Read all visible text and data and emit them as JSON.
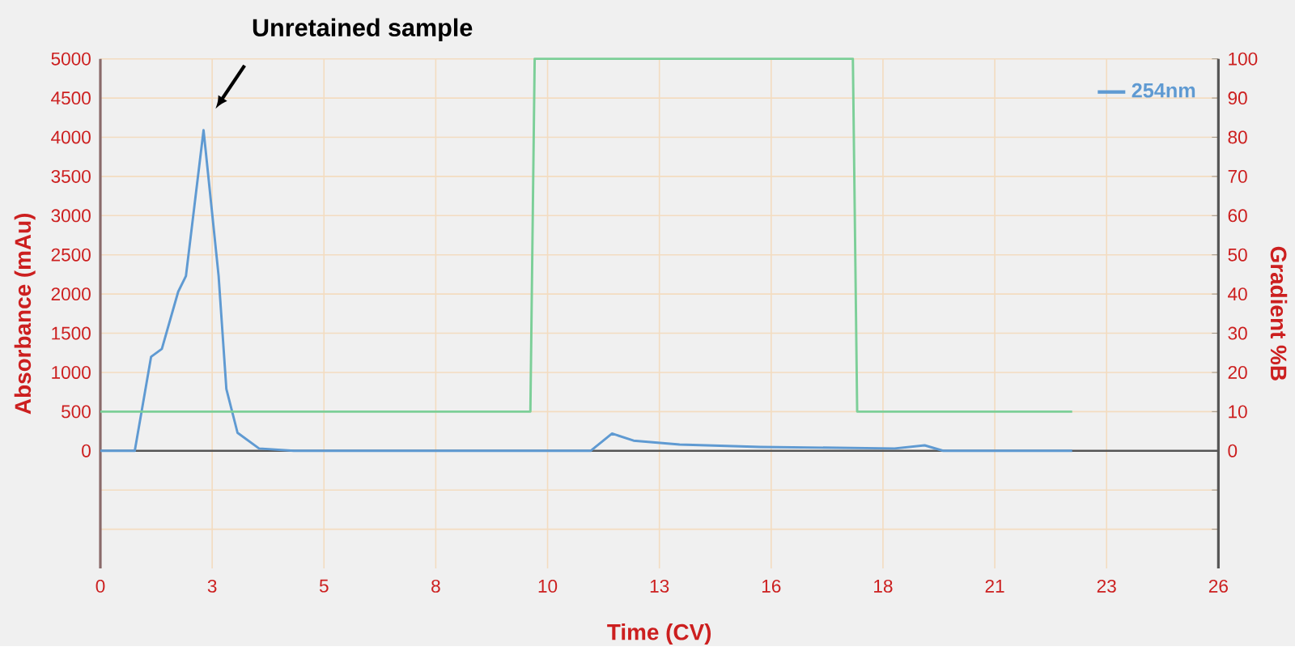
{
  "chart_data": {
    "type": "line",
    "xlabel": "Time (CV)",
    "ylabel": "Absorbance (mAu)",
    "y2label": "Gradient %B",
    "xlim": [
      0,
      26
    ],
    "xticks": [
      0,
      {
        "value": 2.6,
        "label": "3"
      },
      {
        "value": 5.2,
        "label": "5"
      },
      {
        "value": 7.8,
        "label": "8"
      },
      {
        "value": 10.4,
        "label": "10"
      },
      13,
      {
        "value": 15.6,
        "label": "16"
      },
      {
        "value": 18.2,
        "label": "18"
      },
      {
        "value": 20.8,
        "label": "21"
      },
      {
        "value": 23.4,
        "label": "23"
      },
      26
    ],
    "ylim": [
      -1500,
      5000
    ],
    "yticks": [
      {
        "value": -1000,
        "label": null
      },
      {
        "value": -500,
        "label": null
      },
      0,
      500,
      1000,
      1500,
      2000,
      2500,
      3000,
      3500,
      4000,
      4500,
      5000
    ],
    "y2lim": [
      -30,
      100
    ],
    "y2ticks": [
      {
        "value": -20,
        "label": null
      },
      {
        "value": -10,
        "label": null
      },
      0,
      10,
      20,
      30,
      40,
      50,
      60,
      70,
      80,
      90,
      100
    ],
    "series": [
      {
        "name": "254nm",
        "color": "#5f9ad2",
        "x": [
          0,
          0.8,
          1.18,
          1.43,
          1.81,
          1.99,
          2.4,
          2.75,
          2.93,
          3.19,
          3.69,
          4.5,
          11.4,
          11.9,
          12.4,
          13.47,
          15.35,
          18.47,
          19.17,
          19.6,
          22.6
        ],
        "values": [
          0,
          0,
          1200,
          1300,
          2030,
          2230,
          4090,
          2230,
          790,
          230,
          30,
          0,
          0,
          220,
          130,
          80,
          50,
          30,
          70,
          0,
          0
        ]
      },
      {
        "color": "#7ccf98",
        "axis": "y2",
        "x": [
          0,
          10.0,
          10.1,
          17.5,
          17.6,
          22.6
        ],
        "values": [
          10,
          10,
          100,
          100,
          10,
          10
        ]
      }
    ],
    "ref_lines": [
      {
        "axis": "y",
        "value": 0,
        "color": "#555555"
      }
    ],
    "annotations": [
      "Unretained sample"
    ],
    "grid": true,
    "legend": "top right"
  }
}
